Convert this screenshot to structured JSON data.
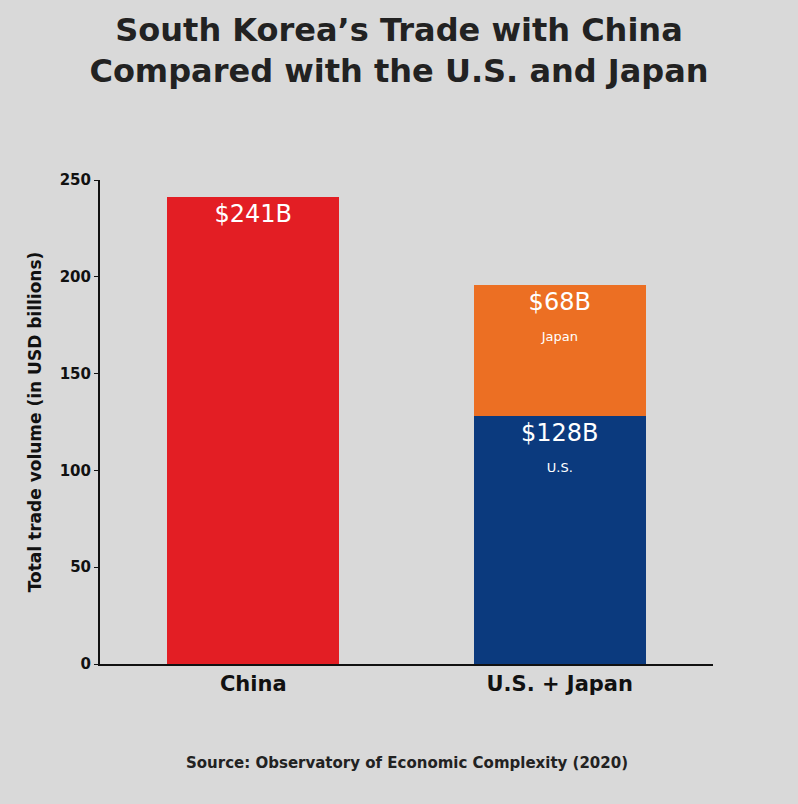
{
  "chart_data": {
    "type": "bar",
    "title": "South Korea’s Trade with China Compared with the U.S. and Japan",
    "y_label": "Total trade volume (in USD billions)",
    "categories": [
      "China",
      "U.S. + Japan"
    ],
    "series": [
      {
        "name": "China",
        "color": "#e31e24",
        "values": [
          241,
          null
        ],
        "value_labels": [
          "$241B",
          null
        ]
      },
      {
        "name": "U.S.",
        "color": "#0b3a7e",
        "values": [
          null,
          128
        ],
        "value_labels": [
          null,
          "$128B"
        ]
      },
      {
        "name": "Japan",
        "color": "#ec6f23",
        "values": [
          null,
          68
        ],
        "value_labels": [
          null,
          "$68B"
        ]
      }
    ],
    "stacked": true,
    "data_labels": true,
    "ylim": [
      0,
      250
    ],
    "yticks": [
      0,
      50,
      100,
      150,
      200,
      250
    ],
    "grid": false,
    "annotations": [
      "Source: Observatory of Economic Complexity (2020)"
    ]
  }
}
